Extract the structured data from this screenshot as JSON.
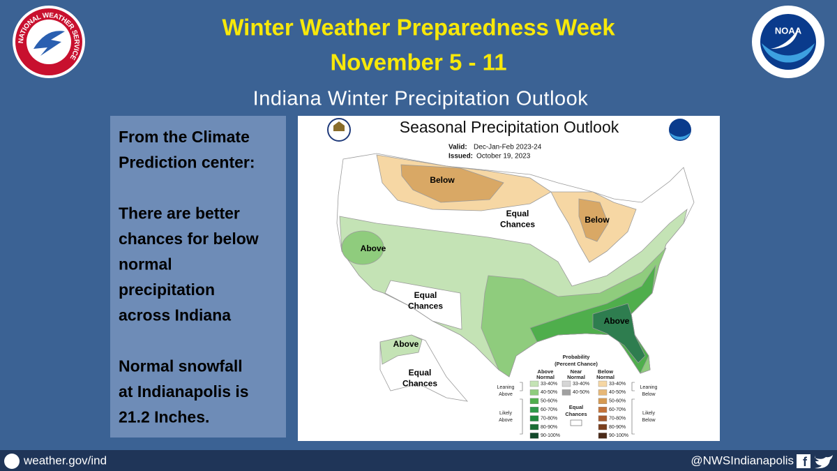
{
  "header": {
    "title": "Winter Weather Preparedness Week",
    "dates": "November 5 - 11",
    "subtitle": "Indiana Winter Precipitation Outlook"
  },
  "logos": {
    "left": "NATIONAL WEATHER SERVICE",
    "right": "NOAA"
  },
  "sidebar": {
    "paragraphs": [
      [
        "From the Climate",
        "Prediction center:"
      ],
      [
        "There are better",
        "chances for below",
        "normal",
        "precipitation",
        "across Indiana"
      ],
      [
        "Normal snowfall",
        "at Indianapolis is",
        "21.2 Inches."
      ]
    ]
  },
  "map": {
    "title": "Seasonal Precipitation Outlook",
    "valid_label": "Valid:",
    "valid": "Dec-Jan-Feb 2023-24",
    "issued_label": "Issued:",
    "issued": "October 19, 2023",
    "regions": [
      [
        "Below"
      ],
      [
        "Equal",
        "Chances"
      ],
      [
        "Below"
      ],
      [
        "Above"
      ],
      [
        "Equal",
        "Chances"
      ],
      [
        "Above"
      ],
      [
        "Above"
      ],
      [
        "Equal",
        "Chances"
      ]
    ],
    "legend": {
      "title": [
        "Probability",
        "(Percent Chance)"
      ],
      "columns": [
        [
          "Above",
          "Normal"
        ],
        [
          "Near",
          "Normal"
        ],
        [
          "Below",
          "Normal"
        ]
      ],
      "above": [
        "33-40%",
        "40-50%",
        "50-60%",
        "60-70%",
        "70-80%",
        "80-90%",
        "90-100%"
      ],
      "near": [
        "33-40%",
        "40-50%"
      ],
      "below": [
        "33-40%",
        "40-50%",
        "50-60%",
        "60-70%",
        "70-80%",
        "80-90%",
        "90-100%"
      ],
      "side_labels": [
        [
          "Leaning",
          "Above"
        ],
        [
          "Likely",
          "Above"
        ],
        [
          "Equal",
          "Chances"
        ],
        [
          "Leaning",
          "Below"
        ],
        [
          "Likely",
          "Below"
        ]
      ]
    }
  },
  "footer": {
    "website": "weather.gov/ind",
    "handle": "@NWSIndianapolis"
  }
}
